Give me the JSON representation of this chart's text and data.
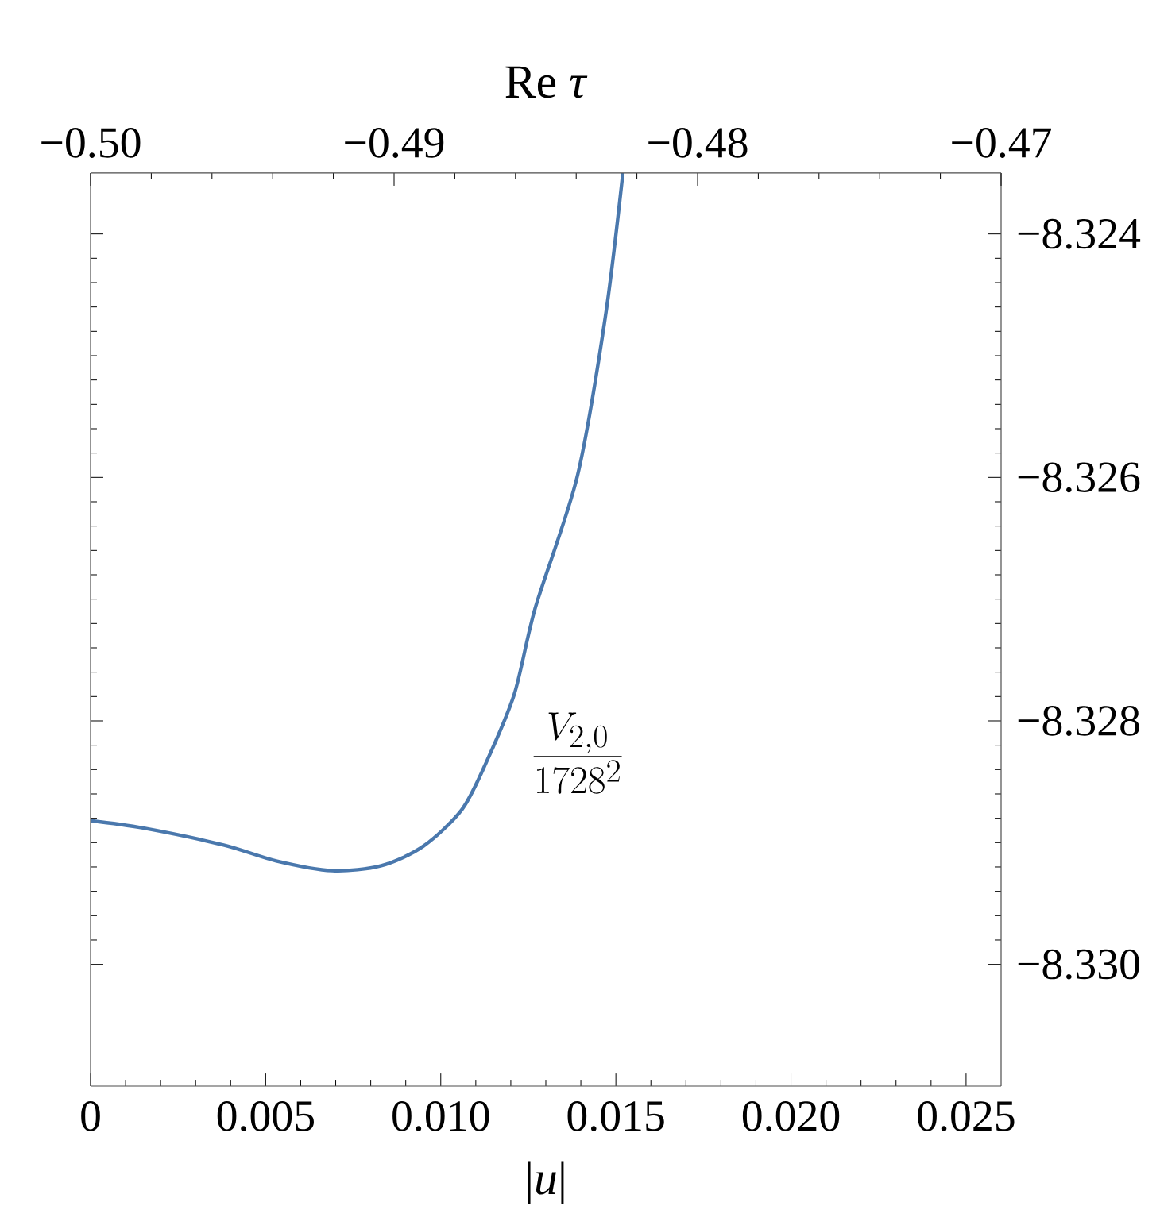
{
  "chart_data": {
    "type": "line",
    "xlabel": "|*u*|",
    "x2label": "Re *τ*",
    "xlim": [
      0,
      0.026
    ],
    "xticks": [
      {
        "value": 0,
        "label": "0"
      },
      {
        "value": 0.005,
        "label": "0.005"
      },
      {
        "value": 0.01,
        "label": "0.010"
      },
      {
        "value": 0.015,
        "label": "0.015"
      },
      {
        "value": 0.02,
        "label": "0.020"
      },
      {
        "value": 0.025,
        "label": "0.025"
      }
    ],
    "x2lim": [
      -0.5,
      -0.47
    ],
    "x2ticks": [
      {
        "value": -0.5,
        "label": "−0.50"
      },
      {
        "value": -0.49,
        "label": "−0.49"
      },
      {
        "value": -0.48,
        "label": "−0.48"
      },
      {
        "value": -0.47,
        "label": "−0.47"
      }
    ],
    "ylim": [
      -8.331,
      -8.3235
    ],
    "yticks": [
      {
        "value": -8.324,
        "label": "−8.324"
      },
      {
        "value": -8.326,
        "label": "−8.326"
      },
      {
        "value": -8.328,
        "label": "−8.328"
      },
      {
        "value": -8.33,
        "label": "−8.330"
      }
    ],
    "grid": false,
    "marker": "none",
    "line_style": "solid",
    "series": [
      {
        "color": "#4a78ad",
        "x": [
          0,
          0.0015,
          0.0038,
          0.0053,
          0.0069,
          0.0083,
          0.0095,
          0.0106,
          0.0113,
          0.0121,
          0.0127,
          0.0139,
          0.0147,
          0.0152
        ],
        "values": [
          -8.32882,
          -8.32888,
          -8.32902,
          -8.32915,
          -8.32923,
          -8.32919,
          -8.32903,
          -8.32873,
          -8.32834,
          -8.32778,
          -8.32707,
          -8.32599,
          -8.32468,
          -8.3235
        ]
      }
    ],
    "annotations": [
      "\\frac{V_{2,0}}{1728^2}"
    ]
  }
}
